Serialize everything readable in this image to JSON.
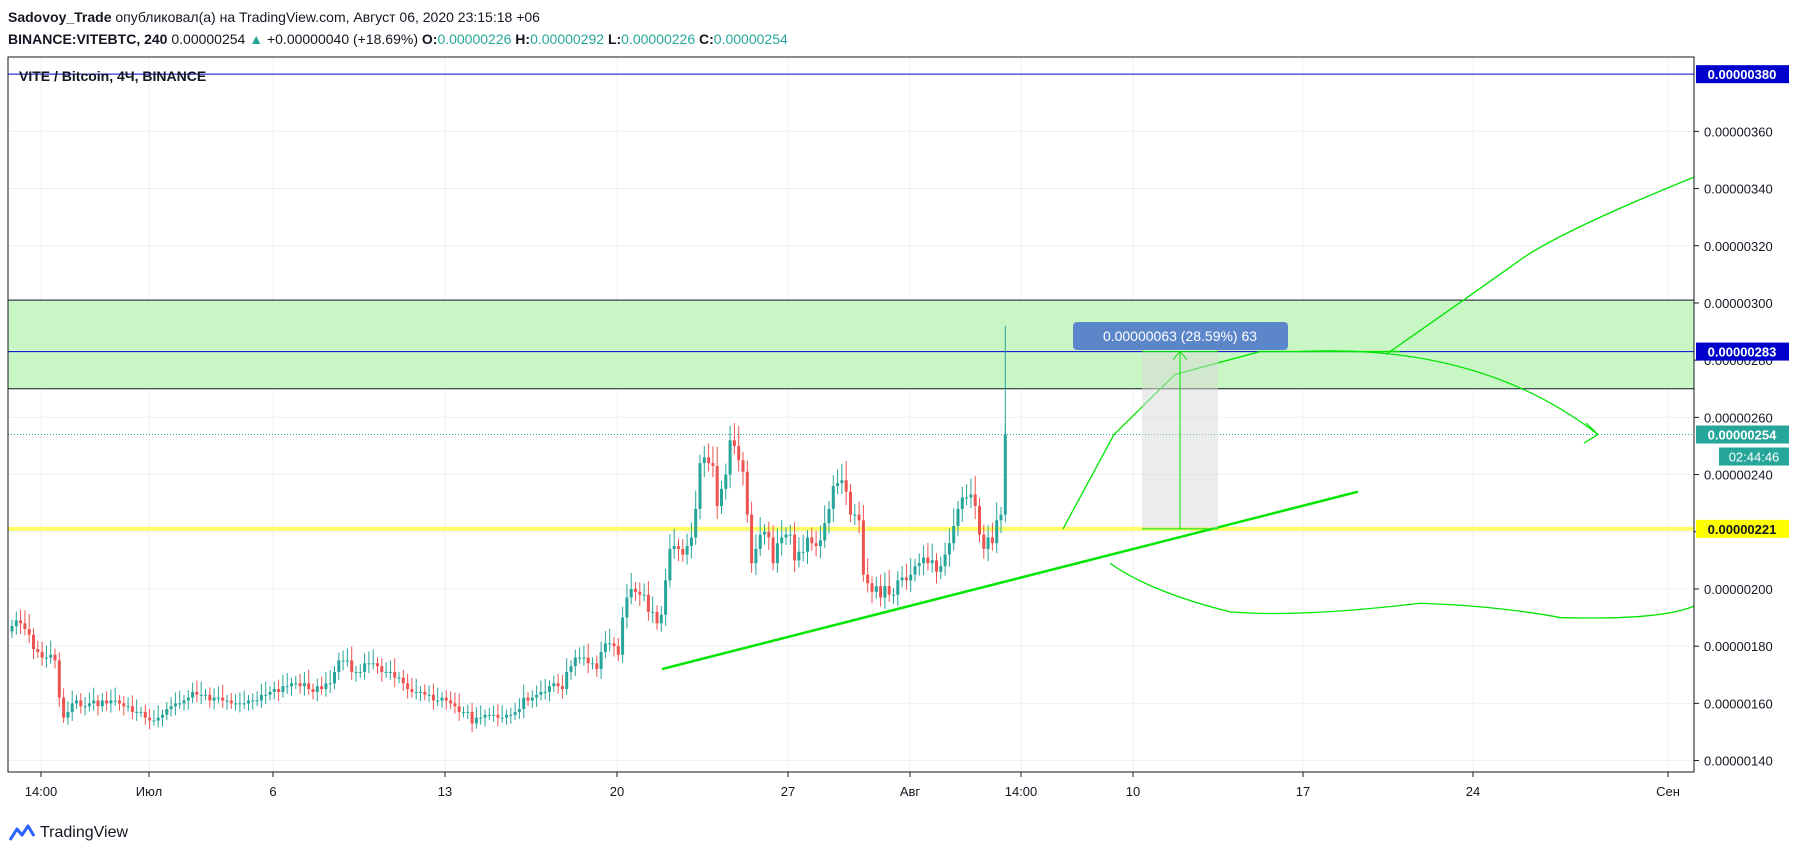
{
  "header": {
    "author": "Sadovoy_Trade",
    "published_text": "опубликовал(а) на TradingView.com, Август 06, 2020 23:15:18 +06",
    "symbol": "BINANCE:VITEBTC, 240",
    "last_price": "0.00000254",
    "change_arrow": "▲",
    "change": "+0.00000040 (+18.69%)",
    "ohlc": [
      {
        "label": "O:",
        "value": "0.00000226"
      },
      {
        "label": "H:",
        "value": "0.00000292"
      },
      {
        "label": "L:",
        "value": "0.00000226"
      },
      {
        "label": "C:",
        "value": "0.00000254"
      }
    ]
  },
  "chart_data": {
    "type": "candlestick",
    "title": "VITE / Bitcoin, 4Ч, BINANCE",
    "ylim": [
      1.36e-06,
      3.86e-06
    ],
    "y_ticks": [
      "0.00000140",
      "0.00000160",
      "0.00000180",
      "0.00000200",
      "0.00000220",
      "0.00000240",
      "0.00000260",
      "0.00000280",
      "0.00000300",
      "0.00000320",
      "0.00000340",
      "0.00000360"
    ],
    "x_ticks": [
      "14:00",
      "Июл",
      "6",
      "13",
      "20",
      "27",
      "Авг",
      "14:00",
      "10",
      "17",
      "24",
      "Сен"
    ],
    "grid": true,
    "price_labels": [
      {
        "value": 3.8e-06,
        "text": "0.00000380",
        "bg": "#0000cc",
        "fg": "#ffffff"
      },
      {
        "value": 2.83e-06,
        "text": "0.00000283",
        "bg": "#0000cc",
        "fg": "#ffffff"
      },
      {
        "value": 2.54e-06,
        "text": "0.00000254",
        "bg": "#26a69a",
        "fg": "#ffffff"
      },
      {
        "value": 2.21e-06,
        "text": "0.00000221",
        "bg": "#ffff00",
        "fg": "#131722"
      }
    ],
    "countdown": "02:44:46",
    "horizontal_lines": [
      {
        "value": 3.8e-06,
        "color": "#0000cc",
        "style": "solid"
      },
      {
        "value": 2.83e-06,
        "color": "#0000cc",
        "style": "solid"
      },
      {
        "value": 2.54e-06,
        "color": "#26a69a",
        "style": "dotted"
      },
      {
        "value": 2.21e-06,
        "color": "#ffff66",
        "style": "solid"
      }
    ],
    "zone": {
      "top": 3.01e-06,
      "bottom": 2.7e-06,
      "color": "#c8f7c5"
    },
    "measure": {
      "from": 2.21e-06,
      "to": 2.83e-06,
      "label": "0.00000063 (28.59%) 63"
    },
    "up_color": "#26a69a",
    "down_color": "#ef5350",
    "accent_green": "#00e600",
    "candles_close": [
      1.87e-06,
      1.89e-06,
      1.88e-06,
      1.86e-06,
      1.84e-06,
      1.79e-06,
      1.78e-06,
      1.76e-06,
      1.76e-06,
      1.77e-06,
      1.75e-06,
      1.62e-06,
      1.55e-06,
      1.57e-06,
      1.6e-06,
      1.61e-06,
      1.59e-06,
      1.59e-06,
      1.6e-06,
      1.61e-06,
      1.59e-06,
      1.61e-06,
      1.6e-06,
      1.61e-06,
      1.61e-06,
      1.6e-06,
      1.59e-06,
      1.59e-06,
      1.57e-06,
      1.57e-06,
      1.57e-06,
      1.55e-06,
      1.54e-06,
      1.54e-06,
      1.55e-06,
      1.56e-06,
      1.58e-06,
      1.59e-06,
      1.6e-06,
      1.6e-06,
      1.61e-06,
      1.62e-06,
      1.64e-06,
      1.63e-06,
      1.63e-06,
      1.63e-06,
      1.61e-06,
      1.62e-06,
      1.62e-06,
      1.61e-06,
      1.61e-06,
      1.6e-06,
      1.6e-06,
      1.6e-06,
      1.6e-06,
      1.61e-06,
      1.61e-06,
      1.61e-06,
      1.63e-06,
      1.63e-06,
      1.64e-06,
      1.65e-06,
      1.64e-06,
      1.66e-06,
      1.66e-06,
      1.67e-06,
      1.67e-06,
      1.66e-06,
      1.67e-06,
      1.65e-06,
      1.64e-06,
      1.66e-06,
      1.65e-06,
      1.67e-06,
      1.67e-06,
      1.71e-06,
      1.75e-06,
      1.75e-06,
      1.75e-06,
      1.71e-06,
      1.71e-06,
      1.71e-06,
      1.74e-06,
      1.74e-06,
      1.74e-06,
      1.73e-06,
      1.71e-06,
      1.71e-06,
      1.71e-06,
      1.69e-06,
      1.69e-06,
      1.67e-06,
      1.65e-06,
      1.64e-06,
      1.64e-06,
      1.64e-06,
      1.63e-06,
      1.63e-06,
      1.61e-06,
      1.61e-06,
      1.62e-06,
      1.61e-06,
      1.6e-06,
      1.59e-06,
      1.57e-06,
      1.57e-06,
      1.57e-06,
      1.53e-06,
      1.55e-06,
      1.55e-06,
      1.56e-06,
      1.56e-06,
      1.56e-06,
      1.55e-06,
      1.55e-06,
      1.56e-06,
      1.56e-06,
      1.57e-06,
      1.58e-06,
      1.62e-06,
      1.61e-06,
      1.62e-06,
      1.63e-06,
      1.64e-06,
      1.64e-06,
      1.66e-06,
      1.67e-06,
      1.66e-06,
      1.65e-06,
      1.71e-06,
      1.73e-06,
      1.76e-06,
      1.76e-06,
      1.76e-06,
      1.74e-06,
      1.74e-06,
      1.72e-06,
      1.78e-06,
      1.81e-06,
      1.81e-06,
      1.8e-06,
      1.77e-06,
      1.9e-06,
      1.97e-06,
      2e-06,
      1.99e-06,
      1.98e-06,
      1.98e-06,
      1.92e-06,
      1.92e-06,
      1.88e-06,
      1.91e-06,
      2.03e-06,
      2.14e-06,
      2.15e-06,
      2.14e-06,
      2.12e-06,
      2.15e-06,
      2.18e-06,
      2.28e-06,
      2.44e-06,
      2.46e-06,
      2.44e-06,
      2.43e-06,
      2.29e-06,
      2.35e-06,
      2.4e-06,
      2.52e-06,
      2.5e-06,
      2.45e-06,
      2.41e-06,
      2.26e-06,
      2.09e-06,
      2.14e-06,
      2.19e-06,
      2.2e-06,
      2.18e-06,
      2.09e-06,
      2.16e-06,
      2.18e-06,
      2.19e-06,
      2.19e-06,
      2.1e-06,
      2.13e-06,
      2.13e-06,
      2.18e-06,
      2.16e-06,
      2.15e-06,
      2.17e-06,
      2.23e-06,
      2.28e-06,
      2.36e-06,
      2.37e-06,
      2.38e-06,
      2.34e-06,
      2.26e-06,
      2.26e-06,
      2.24e-06,
      2.05e-06,
      2.02e-06,
      1.99e-06,
      2.01e-06,
      1.97e-06,
      2.01e-06,
      1.98e-06,
      1.98e-06,
      2.03e-06,
      2.04e-06,
      2.03e-06,
      2.05e-06,
      2.08e-06,
      2.09e-06,
      2.11e-06,
      2.09e-06,
      2.1e-06,
      2.06e-06,
      2.08e-06,
      2.12e-06,
      2.16e-06,
      2.22e-06,
      2.28e-06,
      2.32e-06,
      2.32e-06,
      2.33e-06,
      2.29e-06,
      2.19e-06,
      2.14e-06,
      2.18e-06,
      2.16e-06,
      2.24e-06,
      2.26e-06,
      2.54e-06
    ]
  },
  "footer": {
    "brand": "TradingView"
  }
}
